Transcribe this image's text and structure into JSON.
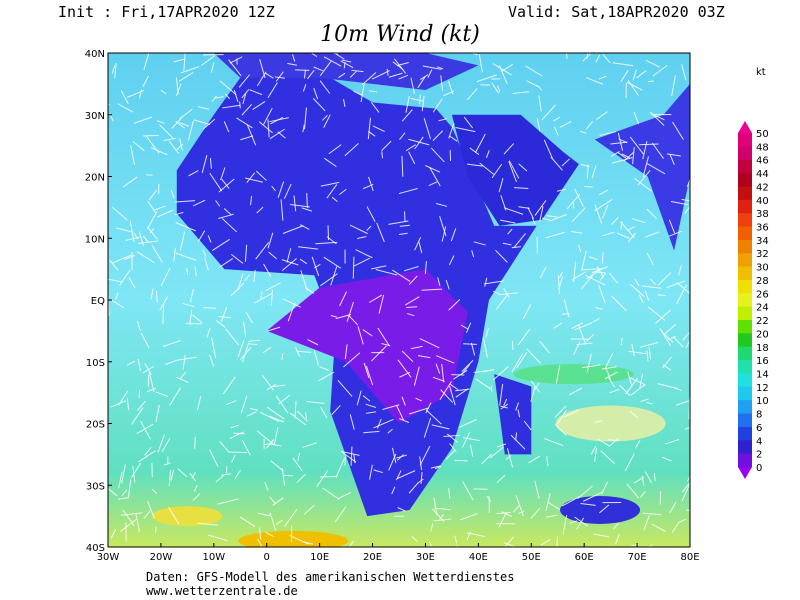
{
  "header": {
    "init": "Init : Fri,17APR2020 12Z",
    "valid": "Valid: Sat,18APR2020 03Z",
    "title": "10m Wind (kt)"
  },
  "map": {
    "lon_labels": [
      "30W",
      "20W",
      "10W",
      "0",
      "10E",
      "20E",
      "30E",
      "40E",
      "50E",
      "60E",
      "70E",
      "80E"
    ],
    "lat_labels": [
      "40N",
      "30N",
      "20N",
      "10N",
      "EQ",
      "10S",
      "20S",
      "30S",
      "40S"
    ]
  },
  "colorbar": {
    "unit": "kt",
    "labels": [
      50,
      48,
      46,
      44,
      42,
      40,
      38,
      36,
      34,
      32,
      30,
      28,
      26,
      24,
      22,
      20,
      18,
      16,
      14,
      12,
      10,
      8,
      6,
      4,
      2,
      0
    ]
  },
  "footer": {
    "line1": "Daten: GFS-Modell des amerikanischen Wetterdienstes",
    "line2": "www.wetterzentrale.de"
  }
}
